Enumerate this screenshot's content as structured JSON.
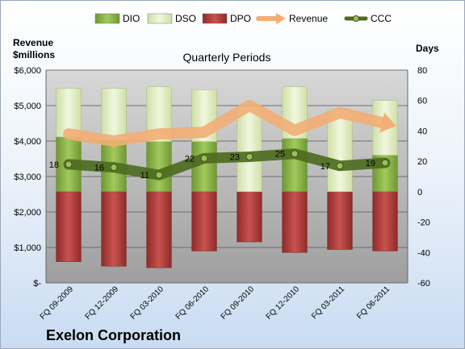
{
  "company": "Exelon Corporation",
  "chart_data": {
    "type": "bar",
    "title": "Quarterly Periods",
    "ylabel_left": [
      "Revenue",
      "$millions"
    ],
    "ylabel_right": "Days",
    "categories": [
      "FQ 09-2009",
      "FQ 12-2009",
      "FQ 03-2010",
      "FQ 06-2010",
      "FQ 09-2010",
      "FQ 12-2010",
      "FQ 03-2011",
      "FQ 06-2011"
    ],
    "y_left": {
      "min": 0,
      "max": 6000,
      "ticks": [
        "$-",
        "$1,000",
        "$2,000",
        "$3,000",
        "$4,000",
        "$5,000",
        "$6,000"
      ]
    },
    "y_right": {
      "min": -60,
      "max": 80,
      "ticks": [
        "-60",
        "-40",
        "-20",
        "0",
        "20",
        "40",
        "60",
        "80"
      ]
    },
    "grid": true,
    "legend_position": "top",
    "series": [
      {
        "name": "DIO",
        "type": "stacked-bar",
        "axis": "right",
        "color": "#8db64a",
        "values": [
          36,
          34,
          33,
          33,
          0,
          35,
          0,
          24
        ]
      },
      {
        "name": "DSO",
        "type": "stacked-bar",
        "axis": "right",
        "color": "#e4efc8",
        "values": [
          32,
          34,
          36,
          34,
          56,
          34,
          54,
          36
        ]
      },
      {
        "name": "DPO",
        "type": "stacked-bar",
        "axis": "right",
        "color": "#c0504d",
        "values": [
          -46,
          -49,
          -50,
          -39,
          -33,
          -40,
          -38,
          -39
        ]
      },
      {
        "name": "Revenue",
        "type": "line",
        "axis": "left",
        "color": "#f2ae75",
        "values": [
          4200,
          4000,
          4200,
          4250,
          5000,
          4300,
          4800,
          4500
        ]
      },
      {
        "name": "CCC",
        "type": "line",
        "axis": "right",
        "color": "#4e6b1f",
        "values": [
          18,
          16,
          11,
          22,
          23,
          25,
          17,
          19
        ]
      }
    ]
  }
}
